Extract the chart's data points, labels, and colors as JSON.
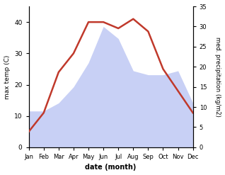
{
  "months": [
    "Jan",
    "Feb",
    "Mar",
    "Apr",
    "May",
    "Jun",
    "Jul",
    "Aug",
    "Sep",
    "Oct",
    "Nov",
    "Dec"
  ],
  "temp": [
    5,
    11,
    24,
    30,
    40,
    40,
    38,
    41,
    37,
    25,
    18,
    11
  ],
  "precip": [
    9,
    9,
    11,
    15,
    21,
    30,
    27,
    19,
    18,
    18,
    19,
    11
  ],
  "temp_color": "#c0392b",
  "precip_color_fill": "#c8d0f5",
  "ylabel_left": "max temp (C)",
  "ylabel_right": "med. precipitation (kg/m2)",
  "xlabel": "date (month)",
  "ylim_left": [
    0,
    45
  ],
  "ylim_right": [
    0,
    35
  ],
  "yticks_left": [
    0,
    10,
    20,
    30,
    40
  ],
  "yticks_right": [
    0,
    5,
    10,
    15,
    20,
    25,
    30,
    35
  ],
  "bg_color": "#ffffff"
}
